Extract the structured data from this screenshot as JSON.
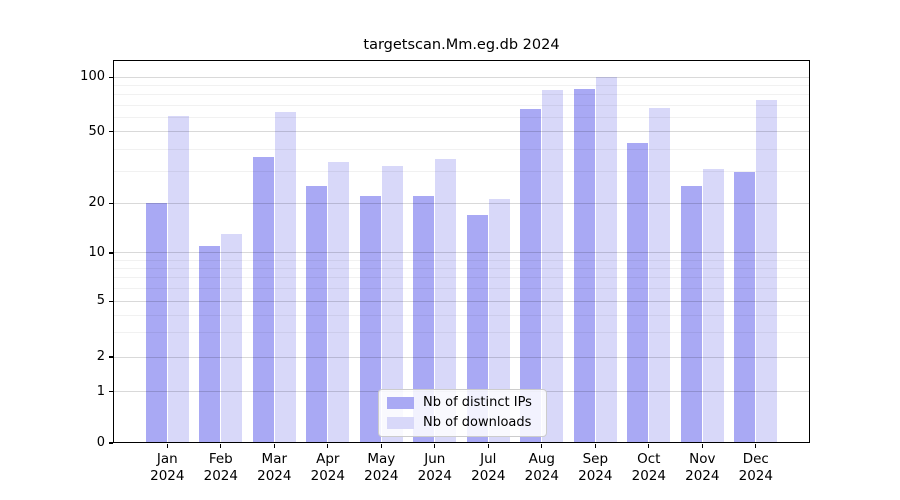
{
  "title": "targetscan.Mm.eg.db 2024",
  "chart_data": {
    "type": "bar",
    "title": "targetscan.Mm.eg.db 2024",
    "categories": [
      "Jan 2024",
      "Feb 2024",
      "Mar 2024",
      "Apr 2024",
      "May 2024",
      "Jun 2024",
      "Jul 2024",
      "Aug 2024",
      "Sep 2024",
      "Oct 2024",
      "Nov 2024",
      "Dec 2024"
    ],
    "x_ticks": [
      {
        "month": "Jan",
        "year": "2024"
      },
      {
        "month": "Feb",
        "year": "2024"
      },
      {
        "month": "Mar",
        "year": "2024"
      },
      {
        "month": "Apr",
        "year": "2024"
      },
      {
        "month": "May",
        "year": "2024"
      },
      {
        "month": "Jun",
        "year": "2024"
      },
      {
        "month": "Jul",
        "year": "2024"
      },
      {
        "month": "Aug",
        "year": "2024"
      },
      {
        "month": "Sep",
        "year": "2024"
      },
      {
        "month": "Oct",
        "year": "2024"
      },
      {
        "month": "Nov",
        "year": "2024"
      },
      {
        "month": "Dec",
        "year": "2024"
      }
    ],
    "series": [
      {
        "name": "Nb of distinct IPs",
        "key": "distinct-ips",
        "color": "#a9a9f4",
        "values": [
          20,
          11,
          36,
          25,
          22,
          22,
          17,
          67,
          86,
          43,
          25,
          30
        ]
      },
      {
        "name": "Nb of downloads",
        "key": "downloads",
        "color": "#d8d8f9",
        "values": [
          61,
          13,
          64,
          34,
          32,
          35,
          21,
          85,
          100,
          68,
          31,
          75
        ]
      }
    ],
    "yscale": "log-with-zero",
    "yticks": [
      0,
      1,
      2,
      5,
      10,
      20,
      50,
      100
    ],
    "ytick_labels": [
      "0",
      "1",
      "2",
      "5",
      "10",
      "20",
      "50",
      "100"
    ],
    "minor_yticks": [
      3,
      4,
      6,
      7,
      8,
      9,
      30,
      40,
      60,
      70,
      80,
      90
    ],
    "ylim": [
      0,
      126
    ],
    "grid": true,
    "legend_position": "lower center"
  },
  "style": {
    "bar_distinct_ips_color": "#a9a9f4",
    "bar_downloads_color": "#d8d8f9",
    "grid_major_color": "#d8d8d8",
    "grid_minor_color": "#efefef",
    "axis_color": "#000000",
    "legend_border_color": "#cccccc",
    "background_color": "#ffffff"
  }
}
